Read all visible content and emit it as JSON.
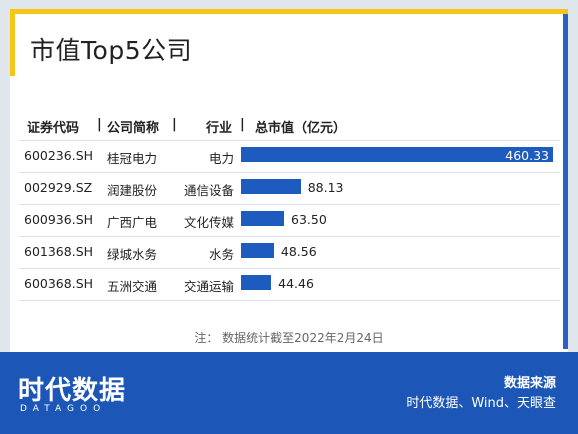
{
  "title": "市值Top5公司",
  "headers": {
    "code": "证券代码",
    "sep1": "|",
    "name": "公司简称",
    "sep2": "|",
    "industry": "行业",
    "sep3": "|",
    "cap": "总市值（亿元）"
  },
  "note": "注：  数据统计截至2022年2月24日",
  "footer": {
    "logo": "时代数据",
    "logo_sub": "DATAGOO",
    "source_title": "数据来源",
    "source_text": "时代数据、Wind、天眼查"
  },
  "colors": {
    "bar": "#1e5bbf",
    "footer": "#1c57b7",
    "accent": "#f5c518"
  },
  "chart_data": {
    "type": "bar",
    "orientation": "horizontal",
    "rows": [
      {
        "code": "600236.SH",
        "name": "桂冠电力",
        "industry": "电力",
        "value": 460.33,
        "label": "460.33"
      },
      {
        "code": "002929.SZ",
        "name": "润建股份",
        "industry": "通信设备",
        "value": 88.13,
        "label": "88.13"
      },
      {
        "code": "600936.SH",
        "name": "广西广电",
        "industry": "文化传媒",
        "value": 63.5,
        "label": "63.50"
      },
      {
        "code": "601368.SH",
        "name": "绿城水务",
        "industry": "水务",
        "value": 48.56,
        "label": "48.56"
      },
      {
        "code": "600368.SH",
        "name": "五洲交通",
        "industry": "交通运输",
        "value": 44.46,
        "label": "44.46"
      }
    ]
  }
}
